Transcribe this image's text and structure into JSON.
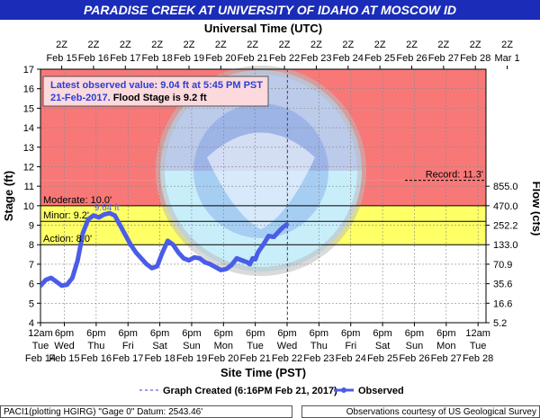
{
  "header": {
    "title": "PARADISE CREEK AT UNIVERSITY OF IDAHO AT MOSCOW ID"
  },
  "footer": {
    "left": "PACI1(plotting HGIRG) \"Gage 0\" Datum: 2543.46'",
    "right": "Observations courtesy of US Geological Survey"
  },
  "colors": {
    "major_band": "#f87878",
    "moderate_band": "#f4a4c0",
    "minor_band": "#ffff66",
    "action_band": "#ffffff",
    "observed_line": "#4a5ce8",
    "title_bar": "#1a2cb8",
    "annotation_text": "#2b3fd8"
  },
  "chart_data": {
    "type": "line",
    "top_axis_title": "Universal Time (UTC)",
    "x_axis_title": "Site Time (PST)",
    "y_left_label": "Stage (ft)",
    "y_right_label": "Flow (cfs)",
    "ylim": [
      4,
      17
    ],
    "y_ticks": [
      "4",
      "5",
      "6",
      "7",
      "8",
      "9",
      "10",
      "11",
      "12",
      "13",
      "14",
      "15",
      "16",
      "17"
    ],
    "x_range": [
      "2017-02-14 00:00",
      "2017-02-28 00:00"
    ],
    "top_ticks": [
      {
        "t": "2017-02-14 16:00",
        "label1": "2Z",
        "label2": "Feb 15"
      },
      {
        "t": "2017-02-15 16:00",
        "label1": "2Z",
        "label2": "Feb 16"
      },
      {
        "t": "2017-02-16 16:00",
        "label1": "2Z",
        "label2": "Feb 17"
      },
      {
        "t": "2017-02-17 16:00",
        "label1": "2Z",
        "label2": "Feb 18"
      },
      {
        "t": "2017-02-18 16:00",
        "label1": "2Z",
        "label2": "Feb 19"
      },
      {
        "t": "2017-02-19 16:00",
        "label1": "2Z",
        "label2": "Feb 20"
      },
      {
        "t": "2017-02-20 16:00",
        "label1": "2Z",
        "label2": "Feb 21"
      },
      {
        "t": "2017-02-21 16:00",
        "label1": "2Z",
        "label2": "Feb 22"
      },
      {
        "t": "2017-02-22 16:00",
        "label1": "2Z",
        "label2": "Feb 23"
      },
      {
        "t": "2017-02-23 16:00",
        "label1": "2Z",
        "label2": "Feb 24"
      },
      {
        "t": "2017-02-24 16:00",
        "label1": "2Z",
        "label2": "Feb 25"
      },
      {
        "t": "2017-02-25 16:00",
        "label1": "2Z",
        "label2": "Feb 26"
      },
      {
        "t": "2017-02-26 16:00",
        "label1": "2Z",
        "label2": "Feb 27"
      },
      {
        "t": "2017-02-27 16:00",
        "label1": "2Z",
        "label2": "Feb 28"
      },
      {
        "t": "2017-02-28 16:00",
        "label1": "2Z",
        "label2": "Mar  1"
      }
    ],
    "bottom_ticks": [
      {
        "t": "2017-02-14 00:00",
        "label1": "12am",
        "label2": "Tue",
        "label3": "Feb 14"
      },
      {
        "t": "2017-02-14 18:00",
        "label1": "6pm",
        "label2": "Wed",
        "label3": "Feb 15"
      },
      {
        "t": "2017-02-15 18:00",
        "label1": "6pm",
        "label2": "Thu",
        "label3": "Feb 16"
      },
      {
        "t": "2017-02-16 18:00",
        "label1": "6pm",
        "label2": "Fri",
        "label3": "Feb 17"
      },
      {
        "t": "2017-02-17 18:00",
        "label1": "6pm",
        "label2": "Sat",
        "label3": "Feb 18"
      },
      {
        "t": "2017-02-18 18:00",
        "label1": "6pm",
        "label2": "Sun",
        "label3": "Feb 19"
      },
      {
        "t": "2017-02-19 18:00",
        "label1": "6pm",
        "label2": "Mon",
        "label3": "Feb 20"
      },
      {
        "t": "2017-02-20 18:00",
        "label1": "6pm",
        "label2": "Tue",
        "label3": "Feb 21"
      },
      {
        "t": "2017-02-21 18:00",
        "label1": "6pm",
        "label2": "Wed",
        "label3": "Feb 22"
      },
      {
        "t": "2017-02-22 18:00",
        "label1": "6pm",
        "label2": "Thu",
        "label3": "Feb 23"
      },
      {
        "t": "2017-02-23 18:00",
        "label1": "6pm",
        "label2": "Fri",
        "label3": "Feb 24"
      },
      {
        "t": "2017-02-24 18:00",
        "label1": "6pm",
        "label2": "Sat",
        "label3": "Feb 25"
      },
      {
        "t": "2017-02-25 18:00",
        "label1": "6pm",
        "label2": "Sun",
        "label3": "Feb 26"
      },
      {
        "t": "2017-02-26 18:00",
        "label1": "6pm",
        "label2": "Mon",
        "label3": "Feb 27"
      },
      {
        "t": "2017-02-27 18:00",
        "label1": "12am",
        "label2": "Tue",
        "label3": "Feb 28"
      }
    ],
    "flow_ticks": [
      {
        "stage": 4.0,
        "label": "5.2"
      },
      {
        "stage": 5.0,
        "label": "16.6"
      },
      {
        "stage": 6.0,
        "label": "35.6"
      },
      {
        "stage": 7.0,
        "label": "70.9"
      },
      {
        "stage": 8.0,
        "label": "133.0"
      },
      {
        "stage": 9.0,
        "label": "252.2"
      },
      {
        "stage": 10.0,
        "label": "470.0"
      },
      {
        "stage": 11.0,
        "label": "855.0"
      }
    ],
    "flood_categories": [
      {
        "name": "action",
        "label": "Action: 8.0'",
        "from": 8.0,
        "to": 9.2
      },
      {
        "name": "minor",
        "label": "Minor: 9.2'",
        "from": 9.2,
        "to": 10.0
      },
      {
        "name": "moderate",
        "label": "Moderate: 10.0'",
        "from": 10.0,
        "to": 11.3
      },
      {
        "name": "major",
        "label": "",
        "from": 11.3,
        "to": 17
      }
    ],
    "record": {
      "label": "Record: 11.3'",
      "value": 11.3
    },
    "peak_label": "9.64 ft",
    "graph_created_time": "2017-02-21 18:16",
    "latest": {
      "line1": "Latest observed value: 9.04 ft at 5:45 PM PST",
      "line2_date": "21-Feb-2017.",
      "line2_flood": "Flood Stage is 9.2 ft"
    },
    "legend": {
      "created": "Graph Created (6:16PM Feb 21, 2017)",
      "observed": "Observed"
    },
    "series": [
      {
        "name": "Observed",
        "x": [
          "2017-02-14 00:00",
          "2017-02-14 04:00",
          "2017-02-14 08:00",
          "2017-02-14 12:00",
          "2017-02-14 16:00",
          "2017-02-14 20:00",
          "2017-02-15 00:00",
          "2017-02-15 04:00",
          "2017-02-15 08:00",
          "2017-02-15 12:00",
          "2017-02-15 16:00",
          "2017-02-15 20:00",
          "2017-02-16 00:00",
          "2017-02-16 04:00",
          "2017-02-16 08:00",
          "2017-02-16 12:00",
          "2017-02-16 16:00",
          "2017-02-16 20:00",
          "2017-02-17 00:00",
          "2017-02-17 04:00",
          "2017-02-17 08:00",
          "2017-02-17 12:00",
          "2017-02-17 16:00",
          "2017-02-17 20:00",
          "2017-02-18 00:00",
          "2017-02-18 04:00",
          "2017-02-18 08:00",
          "2017-02-18 12:00",
          "2017-02-18 16:00",
          "2017-02-18 20:00",
          "2017-02-19 00:00",
          "2017-02-19 04:00",
          "2017-02-19 08:00",
          "2017-02-19 12:00",
          "2017-02-19 16:00",
          "2017-02-19 20:00",
          "2017-02-20 00:00",
          "2017-02-20 04:00",
          "2017-02-20 08:00",
          "2017-02-20 12:00",
          "2017-02-20 14:00",
          "2017-02-20 16:00",
          "2017-02-20 18:00",
          "2017-02-20 20:00",
          "2017-02-21 00:00",
          "2017-02-21 04:00",
          "2017-02-21 08:00",
          "2017-02-21 12:00",
          "2017-02-21 15:00",
          "2017-02-21 17:45"
        ],
        "y": [
          5.9,
          6.2,
          6.3,
          6.1,
          5.9,
          5.95,
          6.3,
          7.2,
          8.6,
          9.3,
          9.5,
          9.4,
          9.55,
          9.62,
          9.5,
          9.0,
          8.5,
          8.0,
          7.6,
          7.3,
          7.0,
          6.8,
          6.9,
          7.6,
          8.2,
          8.0,
          7.6,
          7.3,
          7.2,
          7.35,
          7.3,
          7.1,
          7.0,
          6.85,
          6.7,
          6.75,
          6.95,
          7.3,
          7.2,
          7.1,
          7.0,
          7.3,
          7.25,
          7.6,
          8.0,
          8.45,
          8.4,
          8.7,
          8.9,
          9.04
        ]
      }
    ]
  }
}
